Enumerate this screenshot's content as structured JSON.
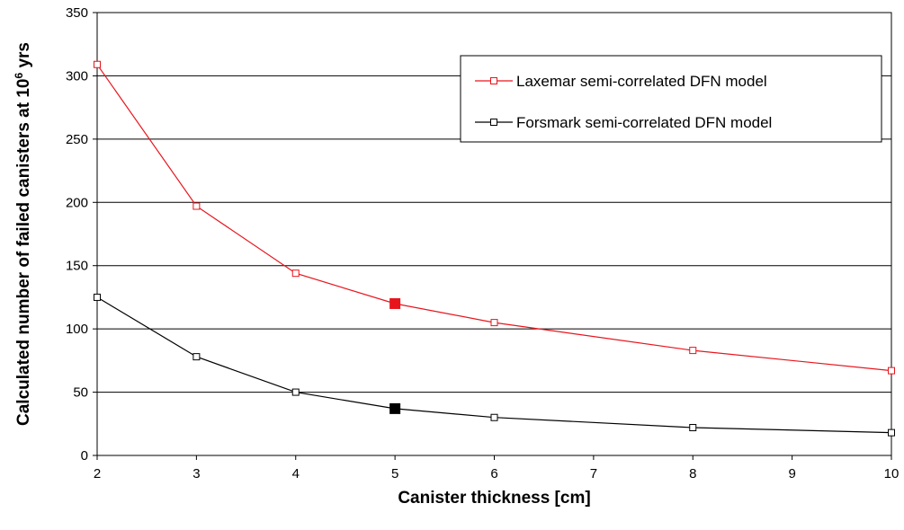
{
  "chart_data": {
    "type": "line",
    "title": "",
    "xlabel": "Canister thickness [cm]",
    "ylabel_main": "Calculated number of failed canisters at 10",
    "ylabel_sup": "6",
    "ylabel_tail": " yrs",
    "xlim": [
      2,
      10
    ],
    "ylim": [
      0,
      350
    ],
    "x_ticks": [
      2,
      3,
      4,
      5,
      6,
      7,
      8,
      9,
      10
    ],
    "y_ticks": [
      0,
      50,
      100,
      150,
      200,
      250,
      300,
      350
    ],
    "grid": "horizontal",
    "legend_position": "top-right",
    "series": [
      {
        "name": "Laxemar semi-correlated DFN model",
        "color": "#e8141c",
        "marker": "open-square",
        "x": [
          2,
          3,
          4,
          5,
          6,
          8,
          10
        ],
        "y": [
          309,
          197,
          144,
          120,
          105,
          83,
          67
        ],
        "highlight_x": 5
      },
      {
        "name": "Forsmark semi-correlated DFN model",
        "color": "#000000",
        "marker": "open-square",
        "x": [
          2,
          3,
          4,
          5,
          6,
          8,
          10
        ],
        "y": [
          125,
          78,
          50,
          37,
          30,
          22,
          18
        ],
        "highlight_x": 5
      }
    ]
  }
}
